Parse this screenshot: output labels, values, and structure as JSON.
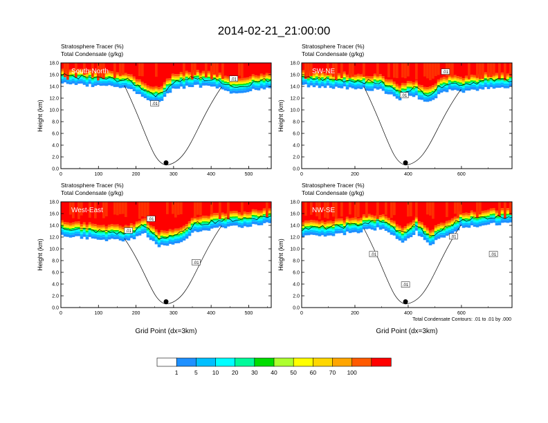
{
  "figure": {
    "title": "2014-02-21_21:00:00",
    "footnote": "Total Condensate Contours: .01 to .01 by .000"
  },
  "panel_labels": {
    "tracer": "Stratosphere Tracer   (%)",
    "condensate": "Total Condensate   (g/kg)"
  },
  "colorbar": {
    "levels": [
      "1",
      "5",
      "10",
      "20",
      "30",
      "40",
      "50",
      "60",
      "70",
      "100"
    ],
    "colors": [
      "#ffffff",
      "#1e90ff",
      "#00bfff",
      "#00ffff",
      "#00fa9a",
      "#00dd00",
      "#adff2f",
      "#ffff00",
      "#ffd700",
      "#ffa500",
      "#ff5a00",
      "#ff0000"
    ]
  },
  "chart_data": [
    {
      "type": "heatmap",
      "name": "South-North",
      "title": "South-North",
      "xlabel": "",
      "ylabel": "Height (km)",
      "xlim": [
        0,
        560
      ],
      "ylim": [
        0,
        18
      ],
      "xticks": [
        "0",
        "100",
        "200",
        "300",
        "400",
        "500"
      ],
      "yticks": [
        "0.0",
        "2.0",
        "4.0",
        "6.0",
        "8.0",
        "10.0",
        "12.0",
        "14.0",
        "16.0",
        "18.0"
      ],
      "marker_x": 280,
      "contour_labels": [
        {
          "text": ".01",
          "x": 460,
          "y": 15.2
        },
        {
          "text": ".01",
          "x": 250,
          "y": 11.0
        }
      ],
      "tropopause_km": [
        [
          0,
          15.4
        ],
        [
          100,
          15.0
        ],
        [
          180,
          14.6
        ],
        [
          220,
          13.2
        ],
        [
          260,
          12.0
        ],
        [
          300,
          14.4
        ],
        [
          350,
          15.0
        ],
        [
          420,
          14.6
        ],
        [
          470,
          13.4
        ],
        [
          520,
          14.4
        ],
        [
          560,
          14.8
        ]
      ]
    },
    {
      "type": "heatmap",
      "name": "SW-NE",
      "title": "SW-NE",
      "xlabel": "",
      "ylabel": "Height (km)",
      "xlim": [
        0,
        790
      ],
      "ylim": [
        0,
        18
      ],
      "xticks": [
        "0",
        "200",
        "400",
        "600"
      ],
      "yticks": [
        "0.0",
        "2.0",
        "4.0",
        "6.0",
        "8.0",
        "10.0",
        "12.0",
        "14.0",
        "16.0",
        "18.0"
      ],
      "marker_x": 390,
      "contour_labels": [
        {
          "text": ".01",
          "x": 540,
          "y": 16.4
        },
        {
          "text": ".01",
          "x": 385,
          "y": 12.4
        }
      ],
      "tropopause_km": [
        [
          0,
          15.0
        ],
        [
          200,
          14.6
        ],
        [
          300,
          14.2
        ],
        [
          370,
          12.6
        ],
        [
          420,
          13.4
        ],
        [
          480,
          12.2
        ],
        [
          540,
          14.2
        ],
        [
          600,
          14.0
        ],
        [
          700,
          14.6
        ],
        [
          790,
          14.8
        ]
      ]
    },
    {
      "type": "heatmap",
      "name": "West-East",
      "title": "West-East",
      "xlabel": "Grid Point (dx=3km)",
      "ylabel": "Height (km)",
      "xlim": [
        0,
        560
      ],
      "ylim": [
        0,
        18
      ],
      "xticks": [
        "0",
        "100",
        "200",
        "300",
        "400",
        "500"
      ],
      "yticks": [
        "0.0",
        "2.0",
        "4.0",
        "6.0",
        "8.0",
        "10.0",
        "12.0",
        "14.0",
        "16.0",
        "18.0"
      ],
      "marker_x": 280,
      "contour_labels": [
        {
          "text": ".01",
          "x": 180,
          "y": 13.0
        },
        {
          "text": ".01",
          "x": 240,
          "y": 15.0
        },
        {
          "text": ".01",
          "x": 360,
          "y": 7.6
        }
      ],
      "tropopause_km": [
        [
          0,
          13.2
        ],
        [
          100,
          12.6
        ],
        [
          180,
          12.2
        ],
        [
          220,
          13.6
        ],
        [
          260,
          11.4
        ],
        [
          320,
          12.2
        ],
        [
          360,
          13.8
        ],
        [
          420,
          14.4
        ],
        [
          500,
          14.8
        ],
        [
          560,
          15.2
        ]
      ]
    },
    {
      "type": "heatmap",
      "name": "NW-SE",
      "title": "NW-SE",
      "xlabel": "Grid Point (dx=3km)",
      "ylabel": "Height (km)",
      "xlim": [
        0,
        790
      ],
      "ylim": [
        0,
        18
      ],
      "xticks": [
        "0",
        "200",
        "400",
        "600"
      ],
      "yticks": [
        "0.0",
        "2.0",
        "4.0",
        "6.0",
        "8.0",
        "10.0",
        "12.0",
        "14.0",
        "16.0",
        "18.0"
      ],
      "marker_x": 390,
      "contour_labels": [
        {
          "text": ".01",
          "x": 270,
          "y": 9.0
        },
        {
          "text": ".01",
          "x": 390,
          "y": 3.8
        },
        {
          "text": ".01",
          "x": 570,
          "y": 12.0
        },
        {
          "text": ".01",
          "x": 720,
          "y": 9.0
        }
      ],
      "tropopause_km": [
        [
          0,
          13.0
        ],
        [
          150,
          13.4
        ],
        [
          300,
          14.4
        ],
        [
          380,
          12.2
        ],
        [
          430,
          13.8
        ],
        [
          480,
          11.4
        ],
        [
          540,
          13.2
        ],
        [
          600,
          14.6
        ],
        [
          700,
          15.0
        ],
        [
          790,
          15.2
        ]
      ]
    }
  ]
}
